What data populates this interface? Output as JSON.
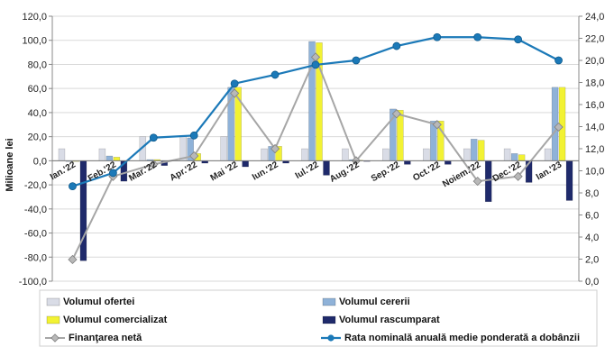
{
  "chart_data": {
    "type": "bar",
    "ylabel": "Milioane lei",
    "ylim": [
      -100,
      120
    ],
    "yticks": [
      "-100,0",
      "-80,0",
      "-60,0",
      "-40,0",
      "-20,0",
      "0,0",
      "20,0",
      "40,0",
      "60,0",
      "80,0",
      "100,0",
      "120,0"
    ],
    "y2lim": [
      0,
      24
    ],
    "y2ticks": [
      "0,0",
      "2,0",
      "4,0",
      "6,0",
      "8,0",
      "10,0",
      "12,0",
      "14,0",
      "16,0",
      "18,0",
      "20,0",
      "22,0",
      "24,0"
    ],
    "categories": [
      "Ian.'22",
      "Feb.'22",
      "Mar.'22",
      "Apr.'22",
      "Mai '22",
      "Iun.'22",
      "Iul.'22",
      "Aug.'22",
      "Sep.'22",
      "Oct.'22",
      "Noiem.'22",
      "Dec.'22",
      "Ian.'23"
    ],
    "series": [
      {
        "name": "Volumul ofertei",
        "type": "bar",
        "axis": "left",
        "color": "#d9dce6",
        "values": [
          10,
          10,
          20,
          20,
          20,
          10,
          10,
          10,
          10,
          10,
          10,
          10,
          10
        ]
      },
      {
        "name": "Volumul cererii",
        "type": "bar",
        "axis": "left",
        "color": "#8fb2d8",
        "values": [
          0,
          4,
          1,
          19,
          61,
          12,
          99,
          1,
          43,
          33,
          18,
          6,
          61
        ]
      },
      {
        "name": "Volumul comercializat",
        "type": "bar",
        "axis": "left",
        "color": "#f2f233",
        "values": [
          0,
          3,
          1,
          6,
          61,
          12,
          98,
          0.5,
          42,
          33,
          17,
          5,
          61
        ]
      },
      {
        "name": "Volumul rascumparat",
        "type": "bar",
        "axis": "left",
        "color": "#1f2a6b",
        "values": [
          -83,
          -17,
          -4,
          -2,
          -5,
          -2,
          -12,
          0,
          -3,
          -3,
          -34,
          -18,
          -33
        ]
      },
      {
        "name": "Finanţarea netă",
        "type": "line",
        "axis": "left",
        "color": "#a6a6a6",
        "values": [
          -82,
          -13,
          -3,
          4,
          56,
          10,
          86,
          0,
          39,
          30,
          -17,
          -13,
          28
        ]
      },
      {
        "name": "Rata nominală anuală medie ponderată a dobânzii",
        "type": "line",
        "axis": "right",
        "color": "#1b79b8",
        "values": [
          8.6,
          9.8,
          13.0,
          13.2,
          17.9,
          18.7,
          19.6,
          20.0,
          21.3,
          22.1,
          22.1,
          21.9,
          20.0
        ]
      }
    ]
  }
}
